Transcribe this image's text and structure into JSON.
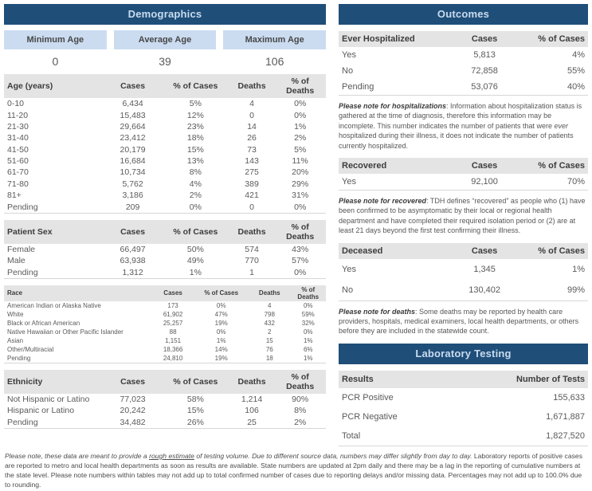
{
  "colors": {
    "header_bg": "#1F4E79",
    "header_text": "#C9DCEF",
    "stat_box_bg": "#CBDCF1",
    "table_header_bg": "#E4E4E4"
  },
  "demographics": {
    "title": "Demographics",
    "stats": [
      {
        "label": "Minimum Age",
        "value": "0"
      },
      {
        "label": "Average Age",
        "value": "39"
      },
      {
        "label": "Maximum Age",
        "value": "106"
      }
    ],
    "age_table": {
      "headers": [
        "Age (years)",
        "Cases",
        "% of Cases",
        "Deaths",
        "% of Deaths"
      ],
      "rows": [
        [
          "0-10",
          "6,434",
          "5%",
          "4",
          "0%"
        ],
        [
          "11-20",
          "15,483",
          "12%",
          "0",
          "0%"
        ],
        [
          "21-30",
          "29,664",
          "23%",
          "14",
          "1%"
        ],
        [
          "31-40",
          "23,412",
          "18%",
          "26",
          "2%"
        ],
        [
          "41-50",
          "20,179",
          "15%",
          "73",
          "5%"
        ],
        [
          "51-60",
          "16,684",
          "13%",
          "143",
          "11%"
        ],
        [
          "61-70",
          "10,734",
          "8%",
          "275",
          "20%"
        ],
        [
          "71-80",
          "5,762",
          "4%",
          "389",
          "29%"
        ],
        [
          "81+",
          "3,186",
          "2%",
          "421",
          "31%"
        ],
        [
          "Pending",
          "209",
          "0%",
          "0",
          "0%"
        ]
      ]
    },
    "sex_table": {
      "headers": [
        "Patient Sex",
        "Cases",
        "% of Cases",
        "Deaths",
        "% of Deaths"
      ],
      "rows": [
        [
          "Female",
          "66,497",
          "50%",
          "574",
          "43%"
        ],
        [
          "Male",
          "63,938",
          "49%",
          "770",
          "57%"
        ],
        [
          "Pending",
          "1,312",
          "1%",
          "1",
          "0%"
        ]
      ]
    },
    "race_table": {
      "headers": [
        "Race",
        "Cases",
        "% of Cases",
        "Deaths",
        "% of Deaths"
      ],
      "rows": [
        [
          "American Indian or Alaska Native",
          "173",
          "0%",
          "4",
          "0%"
        ],
        [
          "White",
          "61,902",
          "47%",
          "798",
          "59%"
        ],
        [
          "Black or African American",
          "25,257",
          "19%",
          "432",
          "32%"
        ],
        [
          "Native Hawaiian or Other Pacific Islander",
          "88",
          "0%",
          "2",
          "0%"
        ],
        [
          "Asian",
          "1,151",
          "1%",
          "15",
          "1%"
        ],
        [
          "Other/Multiracial",
          "18,366",
          "14%",
          "76",
          "6%"
        ],
        [
          "Pending",
          "24,810",
          "19%",
          "18",
          "1%"
        ]
      ]
    },
    "ethnicity_table": {
      "headers": [
        "Ethnicity",
        "Cases",
        "% of Cases",
        "Deaths",
        "% of Deaths"
      ],
      "rows": [
        [
          "Not Hispanic or Latino",
          "77,023",
          "58%",
          "1,214",
          "90%"
        ],
        [
          "Hispanic or Latino",
          "20,242",
          "15%",
          "106",
          "8%"
        ],
        [
          "Pending",
          "34,482",
          "26%",
          "25",
          "2%"
        ]
      ]
    }
  },
  "outcomes": {
    "title": "Outcomes",
    "hospitalized_table": {
      "headers": [
        "Ever Hospitalized",
        "Cases",
        "% of Cases"
      ],
      "rows": [
        [
          "Yes",
          "5,813",
          "4%"
        ],
        [
          "No",
          "72,858",
          "55%"
        ],
        [
          "Pending",
          "53,076",
          "40%"
        ]
      ]
    },
    "hospitalized_note": {
      "lead": "Please note for hospitalizations",
      "body_1": ": Information about hospitalization status is gathered at the time of diagnosis, therefore this information may be incomplete. This number indicates the number of patients that were ",
      "italic_word": "ever",
      "body_2": " hospitalized during their illness, it does not indicate the number of patients currently hospitalized."
    },
    "recovered_table": {
      "headers": [
        "Recovered",
        "Cases",
        "% of Cases"
      ],
      "rows": [
        [
          "Yes",
          "92,100",
          "70%"
        ]
      ]
    },
    "recovered_note": {
      "lead": "Please note for recovered",
      "body": ": TDH defines “recovered” as people who (1) have been confirmed to be asymptomatic by their local or regional health department and have completed their required isolation period or (2) are at least 21 days beyond the first test confirming their illness."
    },
    "deceased_table": {
      "headers": [
        "Deceased",
        "Cases",
        "% of Cases"
      ],
      "rows": [
        [
          "Yes",
          "1,345",
          "1%"
        ],
        [
          "No",
          "130,402",
          "99%"
        ]
      ]
    },
    "deceased_note": {
      "lead": "Please note for deaths",
      "body": ": Some deaths may be reported by health care providers, hospitals, medical examiners, local health departments, or others before they are included in the statewide count."
    }
  },
  "laboratory": {
    "title": "Laboratory Testing",
    "results_table": {
      "headers": [
        "Results",
        "Number of Tests"
      ],
      "rows": [
        [
          "PCR Positive",
          "155,633"
        ],
        [
          "PCR Negative",
          "1,671,887"
        ],
        [
          "Total",
          "1,827,520"
        ]
      ]
    }
  },
  "footer": {
    "italic_1": "Please note, these data are meant to provide a ",
    "underlined": "rough estimate",
    "italic_2": " of testing volume. Due to different source data, numbers may differ slightly from day to day.",
    "regular": "  Laboratory reports of positive cases are reported to metro and local health departments as soon as results are available. State numbers are updated at 2pm daily and there may be a lag in the reporting of cumulative numbers at the state level. Please note numbers within tables may not add up to total confirmed number of cases due to reporting delays and/or missing data. Percentages may not add up to 100.0% due to rounding."
  }
}
